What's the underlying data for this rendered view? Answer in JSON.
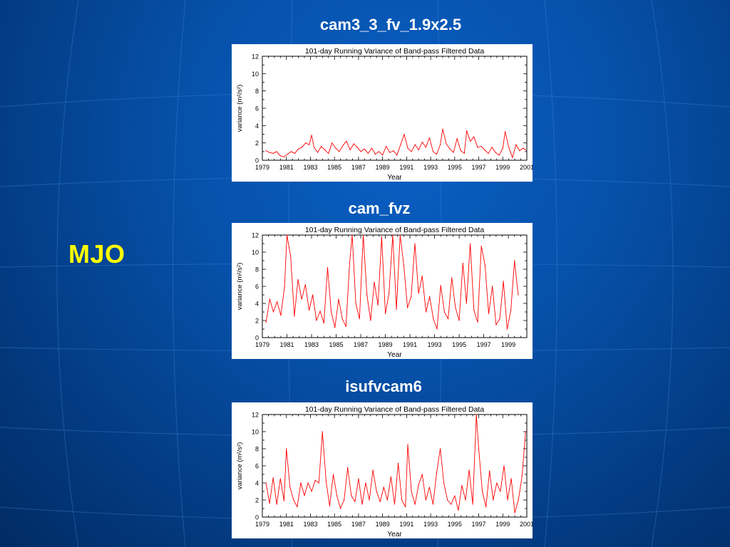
{
  "slide": {
    "label": "MJO"
  },
  "chart_data": [
    {
      "type": "line",
      "panel_title": "cam3_3_fv_1.9x2.5",
      "title": "101-day Running Variance of Band-pass Filtered Data",
      "xlabel": "Year",
      "ylabel": "variance (m²/s²)",
      "xlim": [
        1979,
        2001
      ],
      "ylim": [
        0,
        12
      ],
      "x_ticks": [
        "1979",
        "1981",
        "1983",
        "1985",
        "1987",
        "1989",
        "1991",
        "1993",
        "1995",
        "1997",
        "1999",
        "2001"
      ],
      "y_ticks": [
        "0",
        "2",
        "4",
        "6",
        "8",
        "10",
        "12"
      ],
      "color": "#ff0000",
      "series": [
        {
          "x": [
            1979.3,
            1979.6,
            1979.9,
            1980.2,
            1980.5,
            1980.8,
            1981.1,
            1981.4,
            1981.7,
            1982.0,
            1982.3,
            1982.6,
            1982.9,
            1983.1,
            1983.3,
            1983.6,
            1983.9,
            1984.2,
            1984.5,
            1984.8,
            1985.1,
            1985.4,
            1985.7,
            1986.0,
            1986.3,
            1986.6,
            1986.9,
            1987.2,
            1987.5,
            1987.8,
            1988.1,
            1988.4,
            1988.7,
            1989.0,
            1989.3,
            1989.6,
            1989.9,
            1990.2,
            1990.5,
            1990.8,
            1991.1,
            1991.4,
            1991.7,
            1992.0,
            1992.3,
            1992.6,
            1992.9,
            1993.2,
            1993.5,
            1993.8,
            1994.0,
            1994.3,
            1994.6,
            1994.9,
            1995.2,
            1995.5,
            1995.8,
            1996.0,
            1996.3,
            1996.6,
            1996.9,
            1997.2,
            1997.5,
            1997.8,
            1998.1,
            1998.4,
            1998.7,
            1999.0,
            1999.2,
            1999.5,
            1999.8,
            2000.1,
            2000.4,
            2000.7,
            2000.9
          ],
          "values": [
            1.1,
            0.9,
            0.8,
            1.0,
            0.5,
            0.4,
            0.7,
            1.0,
            0.8,
            1.3,
            1.5,
            2.0,
            1.8,
            2.9,
            1.5,
            0.9,
            1.6,
            1.2,
            0.8,
            2.0,
            1.4,
            1.0,
            1.7,
            2.2,
            1.2,
            1.9,
            1.5,
            1.0,
            1.3,
            0.8,
            1.4,
            0.7,
            1.0,
            0.6,
            1.6,
            0.9,
            1.1,
            0.6,
            1.8,
            3.0,
            1.4,
            1.0,
            1.8,
            1.2,
            2.1,
            1.5,
            2.6,
            1.0,
            0.7,
            1.8,
            3.6,
            1.9,
            1.3,
            0.9,
            2.5,
            1.1,
            0.8,
            3.4,
            2.2,
            2.7,
            1.5,
            1.6,
            1.2,
            0.8,
            1.5,
            0.9,
            0.6,
            1.4,
            3.3,
            1.5,
            0.3,
            1.8,
            1.1,
            1.4,
            1.2
          ]
        }
      ]
    },
    {
      "type": "line",
      "panel_title": "cam_fvz",
      "title": "101-day Running Variance of Band-pass Filtered Data",
      "xlabel": "Year",
      "ylabel": "variance (m²/s²)",
      "xlim": [
        1979,
        2000.5
      ],
      "ylim": [
        0,
        12
      ],
      "x_ticks": [
        "1979",
        "1981",
        "1983",
        "1985",
        "1987",
        "1989",
        "1991",
        "1993",
        "1995",
        "1997",
        "1999"
      ],
      "y_ticks": [
        "0",
        "2",
        "4",
        "6",
        "8",
        "10",
        "12"
      ],
      "color": "#ff0000",
      "series": [
        {
          "x": [
            1979.3,
            1979.6,
            1979.9,
            1980.2,
            1980.5,
            1980.8,
            1981.0,
            1981.3,
            1981.6,
            1981.9,
            1982.2,
            1982.5,
            1982.8,
            1983.1,
            1983.4,
            1983.7,
            1984.0,
            1984.3,
            1984.6,
            1984.9,
            1985.2,
            1985.5,
            1985.8,
            1986.1,
            1986.3,
            1986.6,
            1986.9,
            1987.2,
            1987.5,
            1987.8,
            1988.1,
            1988.4,
            1988.7,
            1989.0,
            1989.3,
            1989.6,
            1989.9,
            1990.2,
            1990.5,
            1990.8,
            1991.1,
            1991.4,
            1991.7,
            1992.0,
            1992.3,
            1992.6,
            1992.9,
            1993.2,
            1993.5,
            1993.8,
            1994.1,
            1994.4,
            1994.7,
            1995.0,
            1995.3,
            1995.6,
            1995.9,
            1996.2,
            1996.5,
            1996.8,
            1997.1,
            1997.4,
            1997.7,
            1998.0,
            1998.3,
            1998.6,
            1998.9,
            1999.2,
            1999.5,
            1999.8
          ],
          "values": [
            1.8,
            4.5,
            3.0,
            4.2,
            2.6,
            5.9,
            12.0,
            9.5,
            2.5,
            6.8,
            4.5,
            6.2,
            3.2,
            5.0,
            2.0,
            3.1,
            1.7,
            8.2,
            3.0,
            1.2,
            4.5,
            2.2,
            1.3,
            8.8,
            12.0,
            4.0,
            2.2,
            12.0,
            5.0,
            2.0,
            6.5,
            3.8,
            11.8,
            2.8,
            5.2,
            12.0,
            3.3,
            12.0,
            8.5,
            3.5,
            4.8,
            11.0,
            5.2,
            7.2,
            3.0,
            4.8,
            2.2,
            1.0,
            6.1,
            3.0,
            2.2,
            7.0,
            3.5,
            2.0,
            8.7,
            4.0,
            11.0,
            3.2,
            1.8,
            10.7,
            8.5,
            2.8,
            6.0,
            1.5,
            2.2,
            6.6,
            1.0,
            3.2,
            9.0,
            5.0
          ]
        }
      ]
    },
    {
      "type": "line",
      "panel_title": "isufvcam6",
      "title": "101-day Running Variance of Band-pass Filtered Data",
      "xlabel": "Year",
      "ylabel": "variance (m²/s²)",
      "xlim": [
        1979,
        2001
      ],
      "ylim": [
        0,
        12
      ],
      "x_ticks": [
        "1979",
        "1981",
        "1983",
        "1985",
        "1987",
        "1989",
        "1991",
        "1993",
        "1995",
        "1997",
        "1999",
        "2001"
      ],
      "y_ticks": [
        "0",
        "2",
        "4",
        "6",
        "8",
        "10",
        "12"
      ],
      "color": "#ff0000",
      "series": [
        {
          "x": [
            1979.3,
            1979.6,
            1979.9,
            1980.2,
            1980.5,
            1980.8,
            1981.0,
            1981.3,
            1981.6,
            1981.9,
            1982.2,
            1982.5,
            1982.8,
            1983.1,
            1983.4,
            1983.7,
            1984.0,
            1984.3,
            1984.6,
            1984.9,
            1985.2,
            1985.5,
            1985.8,
            1986.1,
            1986.4,
            1986.7,
            1987.0,
            1987.3,
            1987.6,
            1987.9,
            1988.2,
            1988.5,
            1988.8,
            1989.1,
            1989.4,
            1989.7,
            1990.0,
            1990.3,
            1990.6,
            1990.9,
            1991.1,
            1991.4,
            1991.7,
            1992.0,
            1992.3,
            1992.6,
            1992.9,
            1993.2,
            1993.5,
            1993.8,
            1994.1,
            1994.4,
            1994.7,
            1995.0,
            1995.3,
            1995.6,
            1995.9,
            1996.2,
            1996.5,
            1996.8,
            1997.0,
            1997.3,
            1997.6,
            1997.9,
            1998.2,
            1998.5,
            1998.8,
            1999.1,
            1999.4,
            1999.7,
            2000.0,
            2000.3,
            2000.6,
            2000.9
          ],
          "values": [
            4.0,
            1.6,
            4.6,
            1.5,
            4.5,
            1.9,
            8.0,
            3.5,
            2.0,
            1.2,
            4.0,
            2.5,
            4.0,
            3.0,
            4.3,
            4.0,
            10.0,
            4.2,
            1.3,
            5.0,
            2.5,
            1.0,
            2.0,
            5.8,
            2.5,
            1.8,
            4.5,
            1.5,
            4.0,
            2.0,
            5.5,
            3.0,
            1.8,
            3.5,
            2.0,
            4.7,
            1.5,
            6.3,
            2.0,
            1.2,
            8.5,
            3.0,
            1.5,
            3.8,
            5.0,
            2.0,
            3.5,
            1.5,
            5.2,
            8.0,
            4.0,
            2.0,
            1.5,
            2.5,
            0.8,
            3.7,
            2.0,
            5.5,
            1.5,
            12.0,
            8.0,
            3.0,
            1.2,
            5.4,
            2.0,
            4.0,
            3.0,
            6.0,
            2.0,
            4.5,
            0.5,
            2.0,
            4.8,
            10.0
          ]
        }
      ]
    }
  ]
}
